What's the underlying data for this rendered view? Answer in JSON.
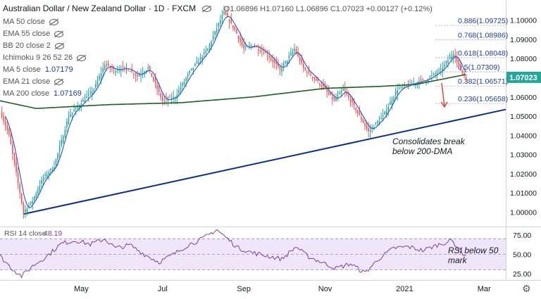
{
  "header": {
    "title": "Australian Dollar / New Zealand Dollar · 1D · FXCM",
    "ohlc": "O1.06896  H1.07160  L1.06896  C1.07023  +0.00127 (+0.12%)"
  },
  "indicators": [
    {
      "label": "MA 50 close",
      "hidden": true,
      "value": ""
    },
    {
      "label": "EMA 55 close",
      "hidden": true,
      "value": ""
    },
    {
      "label": "BB 20 close 2",
      "hidden": true,
      "value": ""
    },
    {
      "label": "Ichimoku 9 26 52 26",
      "hidden": true,
      "value": ""
    },
    {
      "label": "MA 5 close",
      "hidden": false,
      "value": "1.07179"
    },
    {
      "label": "EMA 21 close",
      "hidden": true,
      "value": ""
    },
    {
      "label": "MA 200 close",
      "hidden": false,
      "value": "1.07169"
    }
  ],
  "annotations": {
    "consolidates_line1": "Consolidates break",
    "consolidates_line2": "below 200-DMA",
    "rsi_line1": "RSI below 50",
    "rsi_line2": "mark"
  },
  "colors": {
    "up": "#26a69a",
    "down": "#ef5350",
    "ma5": "#2a4fd0",
    "ma200": "#1b5e20",
    "trendline": "#0d2d8f",
    "rsi": "#7e3f9f",
    "rsi_band": "#e9dcf7",
    "price_tag": "#26a69a",
    "arrow": "#e53935"
  },
  "chart_data": [
    {
      "type": "candlestick",
      "title": "Australian Dollar / New Zealand Dollar · 1D · FXCM",
      "x_ticks": [
        "Mar",
        "May",
        "Jul",
        "Sep",
        "Nov",
        "2021",
        "Mar"
      ],
      "y_ticks": [
        "1.00000",
        "1.01000",
        "1.02000",
        "1.03000",
        "1.04000",
        "1.05000",
        "1.06000",
        "1.07000",
        "1.08000",
        "1.09000",
        "1.10000"
      ],
      "ylim": [
        0.9925,
        1.1105
      ],
      "last_price": "1.07023",
      "price_path": [
        {
          "t": 0,
          "v": 1.053
        },
        {
          "t": 5,
          "v": 1.04
        },
        {
          "t": 9,
          "v": 1.02
        },
        {
          "t": 13,
          "v": 1.0
        },
        {
          "t": 18,
          "v": 1.006
        },
        {
          "t": 24,
          "v": 1.018
        },
        {
          "t": 30,
          "v": 1.024
        },
        {
          "t": 38,
          "v": 1.05
        },
        {
          "t": 46,
          "v": 1.058
        },
        {
          "t": 52,
          "v": 1.064
        },
        {
          "t": 58,
          "v": 1.077
        },
        {
          "t": 63,
          "v": 1.074
        },
        {
          "t": 70,
          "v": 1.075
        },
        {
          "t": 76,
          "v": 1.071
        },
        {
          "t": 82,
          "v": 1.075
        },
        {
          "t": 90,
          "v": 1.058
        },
        {
          "t": 97,
          "v": 1.06
        },
        {
          "t": 105,
          "v": 1.073
        },
        {
          "t": 115,
          "v": 1.085
        },
        {
          "t": 121,
          "v": 1.098
        },
        {
          "t": 124,
          "v": 1.104
        },
        {
          "t": 130,
          "v": 1.095
        },
        {
          "t": 135,
          "v": 1.085
        },
        {
          "t": 140,
          "v": 1.087
        },
        {
          "t": 148,
          "v": 1.082
        },
        {
          "t": 155,
          "v": 1.074
        },
        {
          "t": 163,
          "v": 1.085
        },
        {
          "t": 168,
          "v": 1.075
        },
        {
          "t": 178,
          "v": 1.066
        },
        {
          "t": 185,
          "v": 1.058
        },
        {
          "t": 190,
          "v": 1.064
        },
        {
          "t": 196,
          "v": 1.055
        },
        {
          "t": 204,
          "v": 1.042
        },
        {
          "t": 212,
          "v": 1.05
        },
        {
          "t": 220,
          "v": 1.064
        },
        {
          "t": 228,
          "v": 1.067
        },
        {
          "t": 236,
          "v": 1.069
        },
        {
          "t": 244,
          "v": 1.074
        },
        {
          "t": 251,
          "v": 1.083
        },
        {
          "t": 255,
          "v": 1.074
        },
        {
          "t": 258,
          "v": 1.07
        }
      ],
      "ma200": [
        {
          "t": 0,
          "v": 1.058
        },
        {
          "t": 20,
          "v": 1.054
        },
        {
          "t": 60,
          "v": 1.056
        },
        {
          "t": 100,
          "v": 1.057
        },
        {
          "t": 140,
          "v": 1.06
        },
        {
          "t": 180,
          "v": 1.0645
        },
        {
          "t": 210,
          "v": 1.0655
        },
        {
          "t": 230,
          "v": 1.0665
        },
        {
          "t": 258,
          "v": 1.0717
        }
      ],
      "fibonacci": [
        {
          "label": "0.886(1.09725)",
          "value": 1.09725
        },
        {
          "label": "0.768(1.08986)",
          "value": 1.08986
        },
        {
          "label": "0.618(1.08048)",
          "value": 1.08048
        },
        {
          "label": "0.5(1.07309)",
          "value": 1.07309
        },
        {
          "label": "0.382(1.06571)",
          "value": 1.06571
        },
        {
          "label": "0.236(1.05658)",
          "value": 1.05658
        }
      ],
      "trendline": [
        {
          "t": 13,
          "v": 0.999
        },
        {
          "t": 280,
          "v": 1.0535
        }
      ]
    },
    {
      "type": "line",
      "title": "RSI 14 close",
      "value_label": "48.19",
      "y_ticks": [
        "25.00",
        "50.00",
        "75.00"
      ],
      "ylim": [
        17,
        85
      ],
      "band": [
        30,
        70
      ],
      "series": [
        {
          "name": "RSI 14 close",
          "points": [
            {
              "t": 0,
              "v": 48
            },
            {
              "t": 6,
              "v": 33
            },
            {
              "t": 12,
              "v": 22
            },
            {
              "t": 18,
              "v": 35
            },
            {
              "t": 26,
              "v": 48
            },
            {
              "t": 34,
              "v": 64
            },
            {
              "t": 42,
              "v": 68
            },
            {
              "t": 50,
              "v": 63
            },
            {
              "t": 58,
              "v": 70
            },
            {
              "t": 64,
              "v": 58
            },
            {
              "t": 72,
              "v": 62
            },
            {
              "t": 80,
              "v": 50
            },
            {
              "t": 88,
              "v": 40
            },
            {
              "t": 96,
              "v": 50
            },
            {
              "t": 104,
              "v": 62
            },
            {
              "t": 112,
              "v": 70
            },
            {
              "t": 120,
              "v": 82
            },
            {
              "t": 126,
              "v": 70
            },
            {
              "t": 132,
              "v": 58
            },
            {
              "t": 140,
              "v": 52
            },
            {
              "t": 148,
              "v": 48
            },
            {
              "t": 156,
              "v": 44
            },
            {
              "t": 164,
              "v": 60
            },
            {
              "t": 170,
              "v": 48
            },
            {
              "t": 178,
              "v": 40
            },
            {
              "t": 186,
              "v": 32
            },
            {
              "t": 194,
              "v": 38
            },
            {
              "t": 202,
              "v": 26
            },
            {
              "t": 210,
              "v": 45
            },
            {
              "t": 218,
              "v": 58
            },
            {
              "t": 226,
              "v": 60
            },
            {
              "t": 234,
              "v": 55
            },
            {
              "t": 242,
              "v": 62
            },
            {
              "t": 250,
              "v": 68
            },
            {
              "t": 256,
              "v": 52
            },
            {
              "t": 258,
              "v": 48
            }
          ]
        }
      ]
    }
  ]
}
